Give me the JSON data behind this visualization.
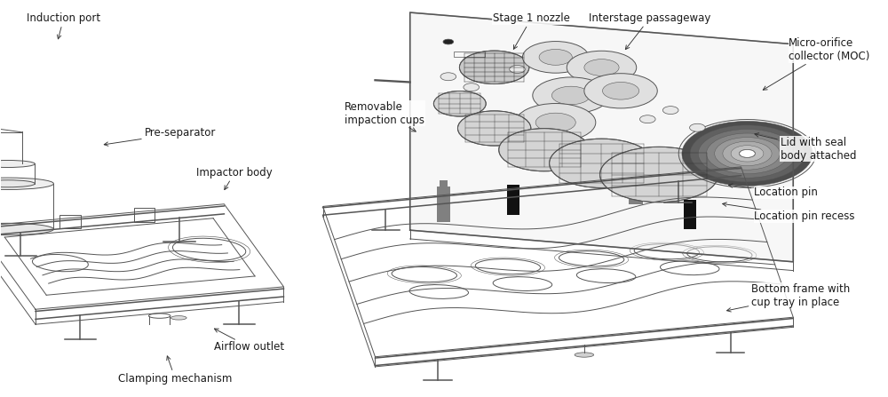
{
  "figsize": [
    10.0,
    4.47
  ],
  "dpi": 100,
  "bg_color": "#ffffff",
  "font_size": 8.5,
  "text_color": "#1a1a1a",
  "line_color": "#555555",
  "line_color_dark": "#333333",
  "annotations_left": [
    {
      "text": "Induction port",
      "tp": [
        0.03,
        0.955
      ],
      "ap": [
        0.065,
        0.895
      ]
    },
    {
      "text": "Pre-separator",
      "tp": [
        0.165,
        0.665
      ],
      "ap": [
        0.115,
        0.635
      ]
    },
    {
      "text": "Impactor body",
      "tp": [
        0.225,
        0.565
      ],
      "ap": [
        0.255,
        0.515
      ]
    },
    {
      "text": "Airflow outlet",
      "tp": [
        0.245,
        0.125
      ],
      "ap": [
        0.242,
        0.175
      ]
    },
    {
      "text": "Clamping mechanism",
      "tp": [
        0.135,
        0.045
      ],
      "ap": [
        0.19,
        0.11
      ]
    }
  ],
  "annotations_right": [
    {
      "text": "Stage 1 nozzle",
      "tp": [
        0.565,
        0.955
      ],
      "ap": [
        0.587,
        0.87
      ]
    },
    {
      "text": "Interstage passageway",
      "tp": [
        0.675,
        0.955
      ],
      "ap": [
        0.715,
        0.87
      ]
    },
    {
      "text": "Micro-orifice\ncollector (MOC)",
      "tp": [
        0.905,
        0.875
      ],
      "ap": [
        0.872,
        0.77
      ]
    },
    {
      "text": "Removable\nimpaction cups",
      "tp": [
        0.395,
        0.715
      ],
      "ap": [
        0.48,
        0.665
      ]
    },
    {
      "text": "Lid with seal\nbody attached",
      "tp": [
        0.895,
        0.625
      ],
      "ap": [
        0.862,
        0.665
      ]
    },
    {
      "text": "Location pin",
      "tp": [
        0.865,
        0.515
      ],
      "ap": [
        0.832,
        0.535
      ]
    },
    {
      "text": "Location pin recess",
      "tp": [
        0.865,
        0.455
      ],
      "ap": [
        0.825,
        0.488
      ]
    },
    {
      "text": "Bottom frame with\ncup tray in place",
      "tp": [
        0.862,
        0.255
      ],
      "ap": [
        0.83,
        0.215
      ]
    }
  ]
}
